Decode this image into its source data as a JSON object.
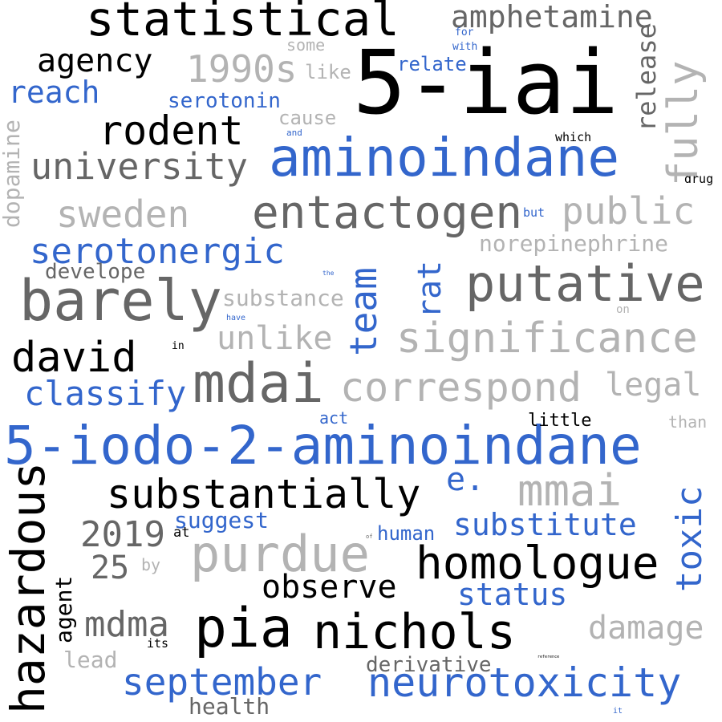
{
  "colors": {
    "black": "#000000",
    "blue": "#3366cc",
    "dark_gray": "#666666",
    "light_gray": "#b3b3b3"
  },
  "words": {
    "5-iai": "5-iai",
    "5-iodo-2-aminoindane": "5-iodo-2-aminoindane",
    "aminoindane": "aminoindane",
    "statistical": "statistical",
    "barely": "barely",
    "putative": "putative",
    "pia": "pia",
    "nichols": "nichols",
    "mdai": "mdai",
    "neurotoxicity": "neurotoxicity",
    "entactogen": "entactogen",
    "homologue": "homologue",
    "hazardous": "hazardous",
    "substantially": "substantially",
    "purdue": "purdue",
    "significance": "significance",
    "correspond": "correspond",
    "rodent": "rodent",
    "university": "university",
    "serotonergic": "serotonergic",
    "david": "david",
    "mmai": "mmai",
    "amphetamine": "amphetamine",
    "agency": "agency",
    "1990s": "1990s",
    "sweden": "sweden",
    "public": "public",
    "fully": "fully",
    "team": "team",
    "september": "september",
    "mdma": "mdma",
    "damage": "damage",
    "reach": "reach",
    "classify": "classify",
    "2019": "2019",
    "substitute": "substitute",
    "status": "status",
    "toxic": "toxic",
    "observe": "observe",
    "rat": "rat",
    "legal": "legal",
    "unlike": "unlike",
    "release": "release",
    "e.": "e.",
    "25": "25",
    "dopamine": "dopamine",
    "norepinephrine": "norepinephrine",
    "serotonin": "serotonin",
    "substance": "substance",
    "derivative": "derivative",
    "develope": "develope",
    "agent": "agent",
    "health": "health",
    "suggest": "suggest",
    "lead": "lead",
    "relate": "relate",
    "human": "human",
    "like": "like",
    "cause": "cause",
    "little": "little",
    "some": "some",
    "act": "act",
    "than": "than",
    "which": "which",
    "drug": "drug",
    "but": "but",
    "by": "by",
    "its": "its",
    "at": "at",
    "for": "for",
    "with": "with",
    "on": "on",
    "in": "in",
    "and": "and",
    "have": "have",
    "the": "the",
    "of": "of",
    "it": "it",
    "reference": "reference"
  }
}
